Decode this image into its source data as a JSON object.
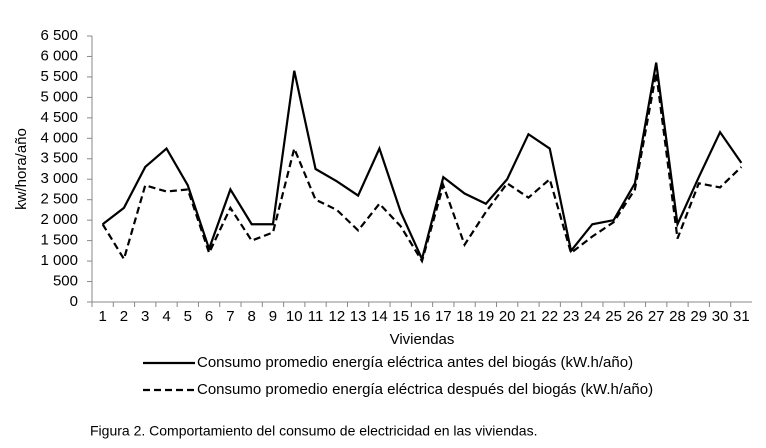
{
  "chart_data": {
    "type": "line",
    "y_label": "kw/hora/año",
    "x_label": "Viviendas",
    "caption": "Figura 2. Comportamiento del consumo de electricidad en las viviendas.",
    "categories": [
      "1",
      "2",
      "3",
      "4",
      "5",
      "6",
      "7",
      "8",
      "9",
      "10",
      "11",
      "12",
      "13",
      "14",
      "15",
      "16",
      "17",
      "18",
      "19",
      "20",
      "21",
      "22",
      "23",
      "24",
      "25",
      "26",
      "27",
      "28",
      "29",
      "30",
      "31"
    ],
    "series": [
      {
        "name": "Consumo promedio energía eléctrica antes del biogás (kW.h/año)",
        "color": "#000000",
        "line_style": "solid",
        "values": [
          1900,
          2300,
          3300,
          3750,
          2850,
          1300,
          2750,
          1900,
          1900,
          5650,
          3250,
          2950,
          2600,
          3750,
          2200,
          1050,
          3050,
          2650,
          2400,
          3000,
          4100,
          3750,
          1250,
          1900,
          2000,
          2900,
          5850,
          1900,
          3050,
          4150,
          3400
        ]
      },
      {
        "name": "Consumo promedio energía eléctrica después del biogás (kW.h/año)",
        "color": "#000000",
        "line_style": "dashed",
        "values": [
          1900,
          1050,
          2850,
          2700,
          2750,
          1200,
          2300,
          1500,
          1700,
          3750,
          2500,
          2250,
          1750,
          2400,
          1850,
          1000,
          2850,
          1400,
          2200,
          2900,
          2550,
          3000,
          1200,
          1600,
          1950,
          2750,
          5600,
          1550,
          2900,
          2800,
          3300
        ]
      }
    ],
    "ylim": [
      0,
      6500
    ],
    "yticks": [
      0,
      500,
      {
        "value": 1000,
        "label": "1 000"
      },
      {
        "value": 1500,
        "label": "1 500"
      },
      {
        "value": 2000,
        "label": "2 000"
      },
      {
        "value": 2500,
        "label": "2 500"
      },
      {
        "value": 3000,
        "label": "3 000"
      },
      {
        "value": 3500,
        "label": "3 500"
      },
      {
        "value": 4000,
        "label": "4 000"
      },
      {
        "value": 4500,
        "label": "4 500"
      },
      {
        "value": 5000,
        "label": "5 000"
      },
      {
        "value": 5500,
        "label": "5 500"
      },
      {
        "value": 6000,
        "label": "6 000"
      },
      {
        "value": 6500,
        "label": "6 500"
      }
    ],
    "grid": false
  }
}
